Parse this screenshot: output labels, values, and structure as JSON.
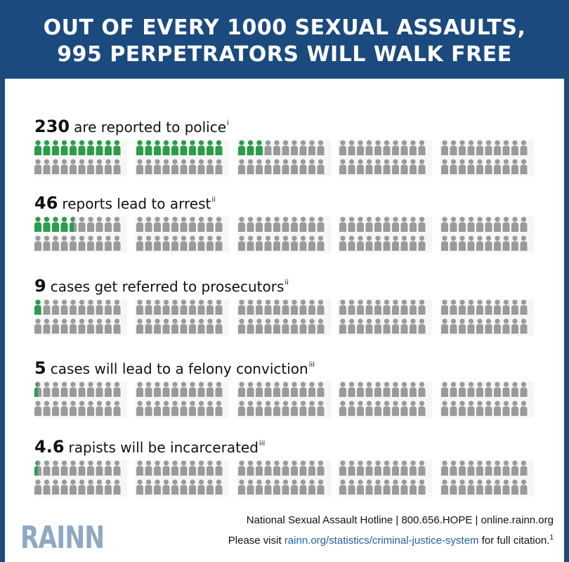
{
  "header": {
    "line1": "OUT OF EVERY 1000 SEXUAL ASSAULTS,",
    "line2": "995 PERPETRATORS WILL WALK FREE"
  },
  "icon": "person-icon",
  "colors": {
    "banner": "#1b4a7e",
    "highlight": "#2a9d4a",
    "neutral": "#9a9a9a",
    "link": "#1f5fa8",
    "logo": "#8da9c4"
  },
  "stats": [
    {
      "number": "230",
      "text": "are reported to police",
      "note": "i",
      "highlighted": 230
    },
    {
      "number": "46",
      "text": "reports lead to arrest",
      "note": "ii",
      "highlighted": 46
    },
    {
      "number": "9",
      "text": "cases get referred to prosecutors",
      "note": "ii",
      "highlighted": 9
    },
    {
      "number": "5",
      "text": "cases will lead to a felony conviction",
      "note": "iii",
      "highlighted": 5
    },
    {
      "number": "4.6",
      "text": "rapists will be incarcerated",
      "note": "iii",
      "highlighted": 4.6
    }
  ],
  "footer": {
    "hotline": "National Sexual Assault Hotline | 800.656.HOPE | online.rainn.org",
    "cite_prefix": "Please visit ",
    "cite_link": "rainn.org/statistics/criminal-justice-system",
    "cite_suffix": " for full citation.",
    "cite_note": "1",
    "logo": "RAINN"
  }
}
